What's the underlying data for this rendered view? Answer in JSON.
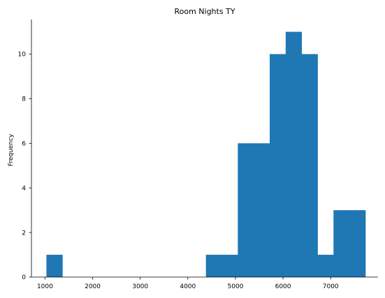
{
  "chart_data": {
    "type": "bar",
    "subtype": "histogram",
    "title": "Room Nights TY",
    "xlabel": "",
    "ylabel": "Frequency",
    "bar_color": "#1f77b4",
    "bin_width": 335,
    "bins": [
      {
        "x_start": 1030,
        "count": 1
      },
      {
        "x_start": 1365,
        "count": 0
      },
      {
        "x_start": 1700,
        "count": 0
      },
      {
        "x_start": 2035,
        "count": 0
      },
      {
        "x_start": 2370,
        "count": 0
      },
      {
        "x_start": 2705,
        "count": 0
      },
      {
        "x_start": 3040,
        "count": 0
      },
      {
        "x_start": 3375,
        "count": 0
      },
      {
        "x_start": 3710,
        "count": 0
      },
      {
        "x_start": 4045,
        "count": 0
      },
      {
        "x_start": 4380,
        "count": 1
      },
      {
        "x_start": 4715,
        "count": 1
      },
      {
        "x_start": 5050,
        "count": 6
      },
      {
        "x_start": 5385,
        "count": 6
      },
      {
        "x_start": 5720,
        "count": 10
      },
      {
        "x_start": 6055,
        "count": 11
      },
      {
        "x_start": 6390,
        "count": 10
      },
      {
        "x_start": 6725,
        "count": 1
      },
      {
        "x_start": 7060,
        "count": 3
      },
      {
        "x_start": 7395,
        "count": 3
      }
    ],
    "xlim": [
      715,
      7995
    ],
    "ylim": [
      0,
      11.55
    ],
    "xticks": [
      1000,
      2000,
      3000,
      4000,
      5000,
      6000,
      7000
    ],
    "yticks": [
      0,
      2,
      4,
      6,
      8,
      10
    ],
    "grid": false,
    "legend": "none"
  }
}
